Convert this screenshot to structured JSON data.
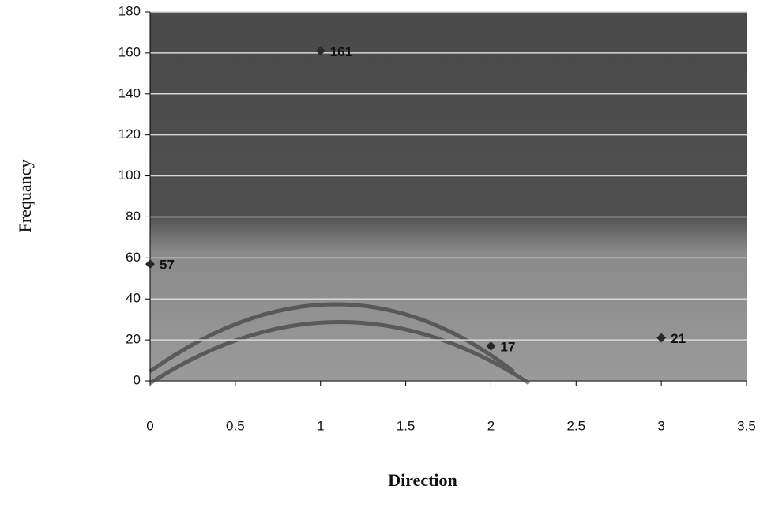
{
  "chart_data": {
    "type": "scatter",
    "x_label": "Direction",
    "y_label": "Frequancy",
    "x": [
      0,
      1,
      2,
      3
    ],
    "values": [
      57,
      161,
      17,
      21
    ],
    "color": "#2a2a2a",
    "xlim": [
      0,
      3.5
    ],
    "xticks": [
      0,
      0.5,
      1,
      1.5,
      2,
      2.5,
      3,
      3.5
    ],
    "ylim": [
      0,
      180
    ],
    "yticks": [
      0,
      20,
      40,
      60,
      80,
      100,
      120,
      140,
      160,
      180
    ],
    "grid": true
  }
}
